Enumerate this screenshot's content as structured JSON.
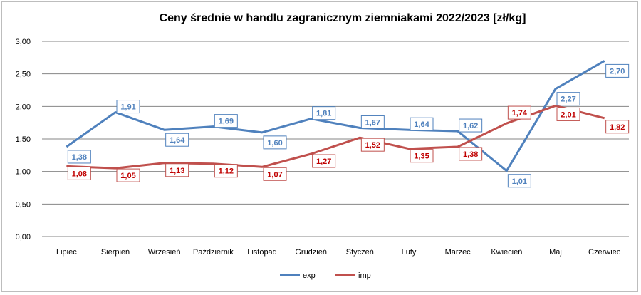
{
  "chart_data": {
    "type": "line",
    "title": "Ceny średnie w handlu zagranicznym ziemniakami 2022/2023 [zł/kg]",
    "xlabel": "",
    "ylabel": "",
    "ylim": [
      0,
      3
    ],
    "yticks": [
      "0,00",
      "0,50",
      "1,00",
      "1,50",
      "2,00",
      "2,50",
      "3,00"
    ],
    "ytick_values": [
      0,
      0.5,
      1,
      1.5,
      2,
      2.5,
      3
    ],
    "grid": true,
    "legend_position": "bottom",
    "categories": [
      "Lipiec",
      "Sierpień",
      "Wrzesień",
      "Październik",
      "Listopad",
      "Grudzień",
      "Styczeń",
      "Luty",
      "Marzec",
      "Kwiecień",
      "Maj",
      "Czerwiec"
    ],
    "series": [
      {
        "name": "exp",
        "color": "#4f81bd",
        "values": [
          1.38,
          1.91,
          1.64,
          1.69,
          1.6,
          1.81,
          1.67,
          1.64,
          1.62,
          1.01,
          2.27,
          2.7
        ],
        "labels": [
          "1,38",
          "1,91",
          "1,64",
          "1,69",
          "1,60",
          "1,81",
          "1,67",
          "1,64",
          "1,62",
          "1,01",
          "2,27",
          "2,70"
        ]
      },
      {
        "name": "imp",
        "color": "#c0504d",
        "values": [
          1.08,
          1.05,
          1.13,
          1.12,
          1.07,
          1.27,
          1.52,
          1.35,
          1.38,
          1.74,
          2.01,
          1.82
        ],
        "labels": [
          "1,08",
          "1,05",
          "1,13",
          "1,12",
          "1,07",
          "1,27",
          "1,52",
          "1,35",
          "1,38",
          "1,74",
          "2,01",
          "1,82"
        ]
      }
    ]
  }
}
